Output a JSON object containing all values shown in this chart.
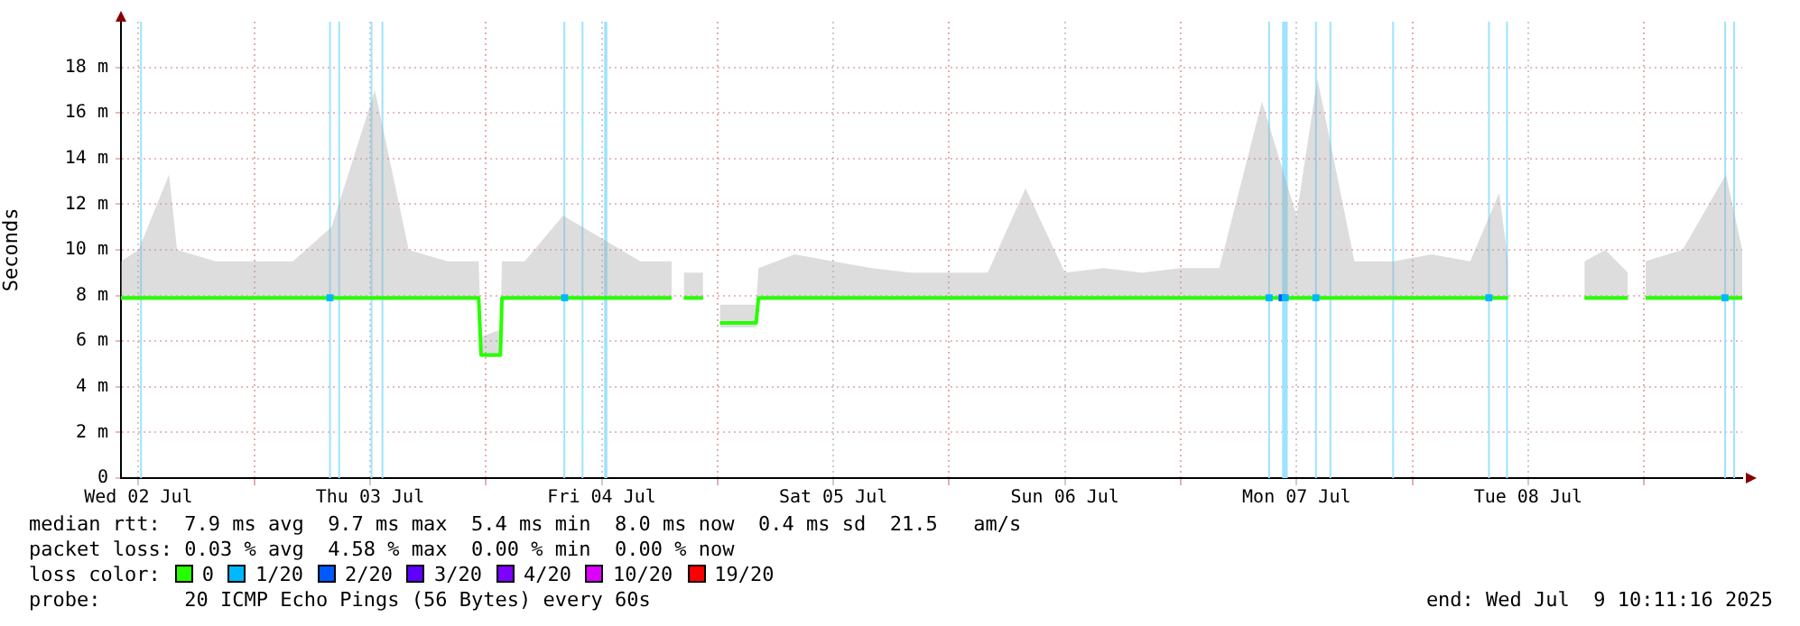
{
  "chart_data": {
    "type": "line",
    "ylabel": "Seconds",
    "xlim": [
      "2025-07-02T10:11",
      "2025-07-09T10:11"
    ],
    "xticks": [
      {
        "value": "2025-07-02T12:00",
        "label": "Wed 02 Jul"
      },
      {
        "value": "2025-07-03T00:00",
        "label": null
      },
      {
        "value": "2025-07-03T12:00",
        "label": "Thu 03 Jul"
      },
      {
        "value": "2025-07-04T00:00",
        "label": null
      },
      {
        "value": "2025-07-04T12:00",
        "label": "Fri 04 Jul"
      },
      {
        "value": "2025-07-05T00:00",
        "label": null
      },
      {
        "value": "2025-07-05T12:00",
        "label": "Sat 05 Jul"
      },
      {
        "value": "2025-07-06T00:00",
        "label": null
      },
      {
        "value": "2025-07-06T12:00",
        "label": "Sun 06 Jul"
      },
      {
        "value": "2025-07-07T00:00",
        "label": null
      },
      {
        "value": "2025-07-07T12:00",
        "label": "Mon 07 Jul"
      },
      {
        "value": "2025-07-08T00:00",
        "label": null
      },
      {
        "value": "2025-07-08T12:00",
        "label": "Tue 08 Jul"
      },
      {
        "value": "2025-07-09T00:00",
        "label": null
      }
    ],
    "ylim": [
      0,
      20
    ],
    "yticks": [
      0,
      {
        "value": 2,
        "label": "2 m"
      },
      {
        "value": 4,
        "label": "4 m"
      },
      {
        "value": 6,
        "label": "6 m"
      },
      {
        "value": 8,
        "label": "8 m"
      },
      {
        "value": 10,
        "label": "10 m"
      },
      {
        "value": 12,
        "label": "12 m"
      },
      {
        "value": 14,
        "label": "14 m"
      },
      {
        "value": 16,
        "label": "16 m"
      },
      {
        "value": 18,
        "label": "18 m"
      }
    ],
    "grid": true,
    "legend": "bottom",
    "line_style": "solid",
    "series": [
      {
        "name": "0",
        "color": "#26ff00",
        "type": "line",
        "marker": "none",
        "x": [
          "2025-07-02T10:11",
          "2025-07-02T12:00",
          "2025-07-02T15:10",
          "2025-07-02T16:00",
          "2025-07-02T20:00",
          "2025-07-03T00:00",
          "2025-07-03T04:00",
          "2025-07-03T08:00",
          "2025-07-03T12:30",
          "2025-07-03T16:00",
          "2025-07-03T20:00",
          "2025-07-03T23:15",
          "2025-07-03T23:30",
          "2025-07-04T01:30",
          "2025-07-04T01:40",
          "2025-07-04T04:00",
          "2025-07-04T08:00",
          "2025-07-04T12:00",
          "2025-07-04T16:00",
          "2025-07-04T19:15",
          "2025-07-04T19:50",
          "2025-07-04T20:30",
          "2025-07-04T22:30",
          "2025-07-04T23:15",
          "2025-07-05T00:15",
          "2025-07-05T04:00",
          "2025-07-05T04:15",
          "2025-07-05T08:00",
          "2025-07-05T12:00",
          "2025-07-05T16:00",
          "2025-07-05T20:00",
          "2025-07-06T00:00",
          "2025-07-06T04:00",
          "2025-07-06T07:55",
          "2025-07-06T12:00",
          "2025-07-06T16:00",
          "2025-07-06T20:00",
          "2025-07-07T00:00",
          "2025-07-07T04:00",
          "2025-07-07T08:25",
          "2025-07-07T12:00",
          "2025-07-07T14:10",
          "2025-07-07T18:00",
          "2025-07-07T22:00",
          "2025-07-08T02:00",
          "2025-07-08T06:00",
          "2025-07-08T09:00",
          "2025-07-08T09:55",
          "2025-07-08T13:00",
          "2025-07-08T17:50",
          "2025-07-08T20:00",
          "2025-07-08T22:20",
          "2025-07-08T23:15",
          "2025-07-09T00:10",
          "2025-07-09T04:00",
          "2025-07-09T08:30",
          "2025-07-09T10:11"
        ],
        "values": [
          7.9,
          7.9,
          7.9,
          7.9,
          7.9,
          7.9,
          7.9,
          7.9,
          7.9,
          7.9,
          7.9,
          7.9,
          5.4,
          5.4,
          7.9,
          7.9,
          7.9,
          7.9,
          7.9,
          7.9,
          null,
          7.9,
          7.9,
          null,
          6.8,
          6.8,
          7.9,
          7.9,
          7.9,
          7.9,
          7.9,
          7.9,
          7.9,
          7.9,
          7.9,
          7.9,
          7.9,
          7.9,
          7.9,
          7.9,
          7.9,
          7.9,
          7.9,
          7.9,
          7.9,
          7.9,
          7.9,
          7.9,
          null,
          7.9,
          7.9,
          7.9,
          null,
          7.9,
          7.9,
          7.9,
          7.9
        ],
        "lower": [
          7.8,
          7.8,
          7.8,
          7.8,
          7.8,
          7.8,
          7.8,
          7.8,
          7.8,
          7.8,
          7.8,
          7.8,
          5.3,
          5.3,
          7.8,
          7.8,
          7.8,
          7.8,
          7.8,
          7.8,
          null,
          7.8,
          7.8,
          null,
          6.6,
          6.6,
          7.8,
          7.8,
          7.8,
          7.8,
          7.8,
          7.8,
          7.8,
          7.8,
          7.8,
          7.8,
          7.8,
          7.8,
          7.8,
          7.8,
          7.8,
          7.8,
          7.8,
          7.8,
          7.8,
          7.8,
          7.8,
          7.8,
          null,
          7.8,
          7.8,
          7.8,
          null,
          7.8,
          7.8,
          7.8,
          7.8
        ],
        "upper": [
          9.5,
          10,
          13.3,
          10,
          9.5,
          9.5,
          9.5,
          11,
          17,
          10,
          9.5,
          9.5,
          6.2,
          6.5,
          9.5,
          9.5,
          11.5,
          10.5,
          9.5,
          9.5,
          null,
          9,
          9,
          null,
          7.6,
          7.6,
          9.2,
          9.8,
          9.5,
          9.2,
          9,
          9,
          9,
          12.7,
          9,
          9.2,
          9,
          9.2,
          9.2,
          16.5,
          11.5,
          17.5,
          9.5,
          9.5,
          9.8,
          9.5,
          12.5,
          9.5,
          null,
          9.5,
          10,
          9,
          null,
          9.5,
          10,
          13.3,
          10
        ]
      },
      {
        "name": "1/20",
        "color": "#00b8ff",
        "type": "scatter",
        "marker": "square",
        "x": [
          "2025-07-03T07:50",
          "2025-07-04T08:10",
          "2025-07-07T09:10",
          "2025-07-07T10:50",
          "2025-07-07T14:00",
          "2025-07-08T07:56",
          "2025-07-09T08:24"
        ],
        "values": [
          7.9,
          7.9,
          7.9,
          7.9,
          7.9,
          7.9,
          7.9
        ]
      },
      {
        "name": "2/20",
        "color": "#0059ff",
        "type": "scatter",
        "marker": "square",
        "x": [
          "2025-07-07T10:30"
        ],
        "values": [
          7.9
        ]
      },
      {
        "name": "3/20",
        "color": "#5e00ff",
        "type": "scatter"
      },
      {
        "name": "4/20",
        "color": "#7e00ff",
        "type": "scatter"
      },
      {
        "name": "10/20",
        "color": "#dd00ff",
        "type": "scatter"
      },
      {
        "name": "19/20",
        "color": "#ff0000",
        "type": "scatter"
      }
    ],
    "bands": [
      {
        "axis": "x",
        "from": "2025-07-02T12:10",
        "to": "2025-07-02T12:20",
        "color": "#9fe3ff"
      },
      {
        "axis": "x",
        "from": "2025-07-03T07:45",
        "to": "2025-07-03T07:55",
        "color": "#9fe3ff"
      },
      {
        "axis": "x",
        "from": "2025-07-03T08:42",
        "to": "2025-07-03T08:52",
        "color": "#9fe3ff"
      },
      {
        "axis": "x",
        "from": "2025-07-03T12:03",
        "to": "2025-07-03T12:13",
        "color": "#9fe3ff"
      },
      {
        "axis": "x",
        "from": "2025-07-03T13:11",
        "to": "2025-07-03T13:21",
        "color": "#9fe3ff"
      },
      {
        "axis": "x",
        "from": "2025-07-04T08:02",
        "to": "2025-07-04T08:12",
        "color": "#9fe3ff"
      },
      {
        "axis": "x",
        "from": "2025-07-04T09:55",
        "to": "2025-07-04T10:05",
        "color": "#9fe3ff"
      },
      {
        "axis": "x",
        "from": "2025-07-04T12:15",
        "to": "2025-07-04T12:35",
        "color": "#9fe3ff"
      },
      {
        "axis": "x",
        "from": "2025-07-07T09:04",
        "to": "2025-07-07T09:14",
        "color": "#9fe3ff"
      },
      {
        "axis": "x",
        "from": "2025-07-07T10:30",
        "to": "2025-07-07T11:05",
        "color": "#9fe3ff"
      },
      {
        "axis": "x",
        "from": "2025-07-07T13:55",
        "to": "2025-07-07T14:05",
        "color": "#9fe3ff"
      },
      {
        "axis": "x",
        "from": "2025-07-07T15:25",
        "to": "2025-07-07T15:35",
        "color": "#9fe3ff"
      },
      {
        "axis": "x",
        "from": "2025-07-07T21:55",
        "to": "2025-07-07T22:05",
        "color": "#9fe3ff"
      },
      {
        "axis": "x",
        "from": "2025-07-08T07:51",
        "to": "2025-07-08T08:01",
        "color": "#9fe3ff"
      },
      {
        "axis": "x",
        "from": "2025-07-08T09:43",
        "to": "2025-07-08T09:53",
        "color": "#9fe3ff"
      },
      {
        "axis": "x",
        "from": "2025-07-09T08:19",
        "to": "2025-07-09T08:29",
        "color": "#9fe3ff"
      },
      {
        "axis": "x",
        "from": "2025-07-09T09:15",
        "to": "2025-07-09T09:25",
        "color": "#9fe3ff"
      }
    ],
    "annotations": [
      "median rtt:  7.9 ms avg  9.7 ms max  5.4 ms min  8.0 ms now  0.4 ms sd  21.5   am/s",
      "packet loss: 0.03 % avg  4.58 % max  0.00 % min  0.00 % now",
      "loss color:",
      "probe:       20 ICMP Echo Pings (56 Bytes) every 60s",
      "end: Wed Jul  9 10:11:16 2025"
    ]
  }
}
